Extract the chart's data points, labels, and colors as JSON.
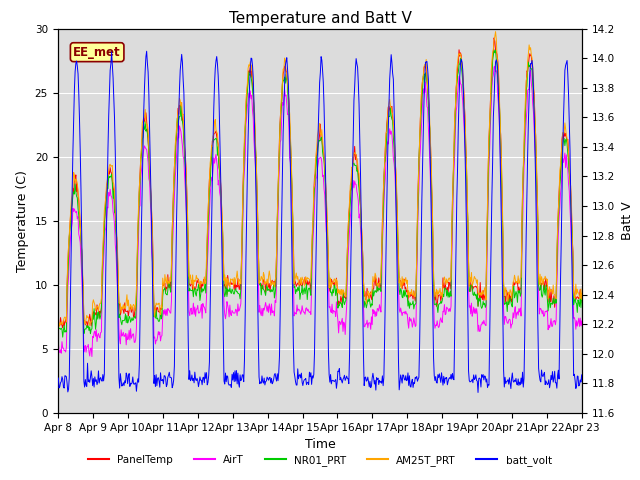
{
  "title": "Temperature and Batt V",
  "xlabel": "Time",
  "ylabel_left": "Temperature (C)",
  "ylabel_right": "Batt V",
  "annotation": "EE_met",
  "ylim_left": [
    0,
    30
  ],
  "ylim_right": [
    11.6,
    14.2
  ],
  "x_tick_labels": [
    "Apr 8",
    "Apr 9",
    "Apr 10",
    "Apr 11",
    "Apr 12",
    "Apr 13",
    "Apr 14",
    "Apr 15",
    "Apr 16",
    "Apr 17",
    "Apr 18",
    "Apr 19",
    "Apr 20",
    "Apr 21",
    "Apr 22",
    "Apr 23"
  ],
  "legend_labels": [
    "PanelTemp",
    "AirT",
    "NR01_PRT",
    "AM25T_PRT",
    "batt_volt"
  ],
  "legend_colors": [
    "#ff0000",
    "#ff00ff",
    "#00cc00",
    "#ffa500",
    "#0000ff"
  ],
  "background_color": "#dcdcdc",
  "num_days": 15,
  "title_fontsize": 11,
  "tick_fontsize": 7.5,
  "label_fontsize": 9,
  "yticks_left": [
    0,
    5,
    10,
    15,
    20,
    25,
    30
  ],
  "yticks_right": [
    11.6,
    11.8,
    12.0,
    12.2,
    12.4,
    12.6,
    12.8,
    13.0,
    13.2,
    13.4,
    13.6,
    13.8,
    14.0,
    14.2
  ],
  "day_peaks": [
    18,
    19,
    23,
    24,
    22,
    27,
    27,
    22,
    20,
    24,
    27,
    28,
    29,
    28,
    22
  ],
  "day_mins": [
    7,
    8,
    8,
    10,
    10,
    10,
    10,
    10,
    9,
    10,
    9,
    10,
    9,
    10,
    9
  ]
}
